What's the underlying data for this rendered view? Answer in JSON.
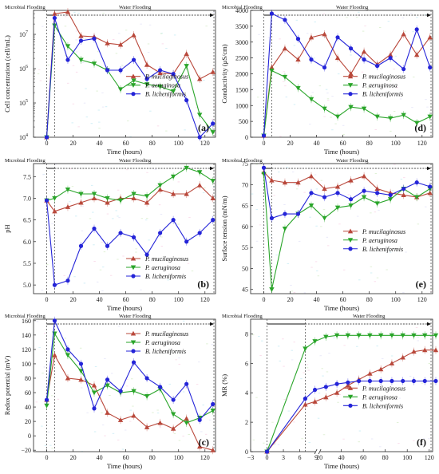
{
  "colors": {
    "pm": "#b9483b",
    "pa": "#2aa52a",
    "bl": "#2424d8"
  },
  "chart_data": [
    {
      "id": "a",
      "type": "line",
      "panel_label": "(a)",
      "ylabel": "Cell concentration (cell/mL)",
      "xlabel": "Time (hours)",
      "yscale": "log",
      "ylim": [
        10000,
        50000000
      ],
      "xlim": [
        -10,
        128
      ],
      "yticks": [
        10000,
        100000,
        1000000,
        10000000
      ],
      "ytick_labels": [
        "10",
        "10",
        "10",
        "10"
      ],
      "ytick_exponents": [
        "4",
        "5",
        "6",
        "7"
      ],
      "xticks": [
        0,
        20,
        40,
        60,
        80,
        100,
        120
      ],
      "phase_labels": [
        "Microbial Flooding",
        "Water Flooding"
      ],
      "legend_position": "center-right",
      "series": [
        {
          "name": "P. mucilaginosus",
          "color_key": "pm",
          "marker": "triangle",
          "x": [
            0,
            6,
            16,
            26,
            36,
            46,
            56,
            66,
            76,
            86,
            96,
            106,
            116,
            126
          ],
          "y": [
            10000,
            40000000,
            45000000,
            9000000,
            8500000,
            5500000,
            5000000,
            9500000,
            1300000,
            750000,
            700000,
            2700000,
            500000,
            800000
          ]
        },
        {
          "name": "P. aeruginosa",
          "color_key": "pa",
          "marker": "triangle-down",
          "x": [
            0,
            6,
            16,
            26,
            36,
            46,
            56,
            66,
            76,
            86,
            96,
            106,
            116,
            126
          ],
          "y": [
            10000,
            18000000,
            4500000,
            1800000,
            1400000,
            900000,
            250000,
            450000,
            350000,
            300000,
            220000,
            1200000,
            45000,
            14000
          ]
        },
        {
          "name": "B. licheniformis",
          "color_key": "bl",
          "marker": "circle",
          "x": [
            0,
            6,
            16,
            26,
            36,
            46,
            56,
            66,
            76,
            86,
            96,
            106,
            116,
            126
          ],
          "y": [
            10000,
            30000000,
            1800000,
            6500000,
            7500000,
            900000,
            900000,
            1800000,
            500000,
            900000,
            700000,
            120000,
            10000,
            25000
          ]
        }
      ]
    },
    {
      "id": "d",
      "type": "line",
      "panel_label": "(d)",
      "ylabel": "Conductivity (μS/cm)",
      "xlabel": "Time (hours)",
      "yscale": "linear",
      "ylim": [
        0,
        4000
      ],
      "xlim": [
        -10,
        128
      ],
      "yticks": [
        0,
        500,
        1000,
        1500,
        2000,
        2500,
        3000,
        3500,
        4000
      ],
      "ytick_labels": [
        "0",
        "500",
        "1000",
        "1500",
        "2000",
        "2500",
        "3000",
        "3500",
        "4000"
      ],
      "xticks": [
        0,
        20,
        40,
        60,
        80,
        100,
        120
      ],
      "phase_labels": [
        "Microbial Flooding",
        "Water Flooding"
      ],
      "legend_position": "center-right",
      "series": [
        {
          "name": "P. mucilaginosus",
          "color_key": "pm",
          "marker": "triangle",
          "x": [
            0,
            6,
            16,
            26,
            36,
            46,
            56,
            66,
            76,
            86,
            96,
            106,
            116,
            126
          ],
          "y": [
            50,
            2200,
            2800,
            2450,
            3150,
            3250,
            2500,
            2000,
            2700,
            2300,
            2600,
            3250,
            2600,
            3150
          ]
        },
        {
          "name": "P. aeruginosa",
          "color_key": "pa",
          "marker": "triangle-down",
          "x": [
            0,
            6,
            16,
            26,
            36,
            46,
            56,
            66,
            76,
            86,
            96,
            106,
            116,
            126
          ],
          "y": [
            50,
            2100,
            1900,
            1550,
            1200,
            900,
            650,
            950,
            900,
            650,
            600,
            700,
            450,
            650
          ]
        },
        {
          "name": "B. licheniformis",
          "color_key": "bl",
          "marker": "circle",
          "x": [
            0,
            6,
            16,
            26,
            36,
            46,
            56,
            66,
            76,
            86,
            96,
            106,
            116,
            126
          ],
          "y": [
            50,
            3900,
            3700,
            3100,
            2450,
            2200,
            3150,
            2800,
            2450,
            2250,
            2500,
            2150,
            3400,
            2200
          ]
        }
      ]
    },
    {
      "id": "b",
      "type": "line",
      "panel_label": "(b)",
      "ylabel": "pH",
      "xlabel": "Time (hours)",
      "yscale": "linear",
      "ylim": [
        4.8,
        7.8
      ],
      "xlim": [
        -10,
        128
      ],
      "yticks": [
        5.0,
        5.5,
        6.0,
        6.5,
        7.0,
        7.5
      ],
      "ytick_labels": [
        "5.0",
        "5.5",
        "6.0",
        "6.5",
        "7.0",
        "7.5"
      ],
      "xticks": [
        0,
        20,
        40,
        60,
        80,
        100,
        120
      ],
      "phase_labels": [
        "Microbial Flooding",
        "Water Flooding"
      ],
      "legend_position": "bottom-right",
      "series": [
        {
          "name": "P. mucilaginosus",
          "color_key": "pm",
          "marker": "triangle",
          "x": [
            0,
            6,
            16,
            26,
            36,
            46,
            56,
            66,
            76,
            86,
            96,
            106,
            116,
            126
          ],
          "y": [
            6.95,
            6.7,
            6.8,
            6.9,
            7.0,
            6.9,
            7.0,
            7.0,
            6.9,
            7.2,
            7.1,
            7.1,
            7.3,
            7.0
          ]
        },
        {
          "name": "P. aeruginosa",
          "color_key": "pa",
          "marker": "triangle-down",
          "x": [
            0,
            6,
            16,
            26,
            36,
            46,
            56,
            66,
            76,
            86,
            96,
            106,
            116,
            126
          ],
          "y": [
            6.95,
            7.0,
            7.2,
            7.1,
            7.1,
            7.0,
            6.95,
            7.1,
            7.05,
            7.3,
            7.5,
            7.7,
            7.6,
            7.4
          ]
        },
        {
          "name": "B. licheniformis",
          "color_key": "bl",
          "marker": "circle",
          "x": [
            0,
            6,
            16,
            26,
            36,
            46,
            56,
            66,
            76,
            86,
            96,
            106,
            116,
            126
          ],
          "y": [
            6.95,
            5.0,
            5.1,
            5.9,
            6.3,
            5.9,
            6.2,
            6.1,
            5.7,
            6.2,
            6.5,
            6.0,
            6.2,
            6.5
          ]
        }
      ]
    },
    {
      "id": "e",
      "type": "line",
      "panel_label": "(e)",
      "ylabel": "Surface tension (mN/m)",
      "xlabel": "Time (hours)",
      "yscale": "linear",
      "ylim": [
        44,
        75
      ],
      "xlim": [
        -10,
        128
      ],
      "yticks": [
        45,
        50,
        55,
        60,
        65,
        70,
        75
      ],
      "ytick_labels": [
        "45",
        "50",
        "55",
        "60",
        "65",
        "70",
        "75"
      ],
      "xticks": [
        0,
        20,
        40,
        60,
        80,
        100,
        120
      ],
      "phase_labels": [
        "Microbial Flooding",
        "Water Flooding"
      ],
      "legend_position": "center-right",
      "series": [
        {
          "name": "P. mucilaginosus",
          "color_key": "pm",
          "marker": "triangle",
          "x": [
            0,
            6,
            16,
            26,
            36,
            46,
            56,
            66,
            76,
            86,
            96,
            106,
            116,
            126
          ],
          "y": [
            73,
            71,
            70.5,
            70.5,
            72,
            69,
            69.5,
            71,
            72,
            69,
            68,
            67.5,
            67,
            68
          ]
        },
        {
          "name": "P. aeruginosa",
          "color_key": "pa",
          "marker": "triangle-down",
          "x": [
            0,
            6,
            16,
            26,
            36,
            46,
            56,
            66,
            76,
            86,
            96,
            106,
            116,
            126
          ],
          "y": [
            72.5,
            45,
            59.5,
            63,
            65,
            62,
            64.5,
            65,
            67,
            65.5,
            66.5,
            69,
            67,
            69
          ]
        },
        {
          "name": "B. licheniformis",
          "color_key": "bl",
          "marker": "circle",
          "x": [
            0,
            6,
            16,
            26,
            36,
            46,
            56,
            66,
            76,
            86,
            96,
            106,
            116,
            126
          ],
          "y": [
            74,
            62,
            63,
            63,
            68,
            67,
            68,
            66.5,
            68.5,
            68,
            67.5,
            69,
            70.5,
            69.5
          ]
        }
      ]
    },
    {
      "id": "c",
      "type": "line",
      "panel_label": "(c)",
      "ylabel": "Redox potential (mV)",
      "xlabel": "Time (hours)",
      "yscale": "linear",
      "ylim": [
        -22,
        162
      ],
      "xlim": [
        -10,
        128
      ],
      "yticks": [
        -20,
        0,
        20,
        40,
        60,
        80,
        100,
        120,
        140,
        160
      ],
      "ytick_labels": [
        "−20",
        "0",
        "20",
        "40",
        "60",
        "80",
        "100",
        "120",
        "140",
        "160"
      ],
      "xticks": [
        0,
        20,
        40,
        60,
        80,
        100,
        120
      ],
      "phase_labels": [
        "Microbial Flooding",
        "Water Flooding"
      ],
      "legend_position": "top-right",
      "series": [
        {
          "name": "P. mucilaginosus",
          "color_key": "pm",
          "marker": "triangle",
          "x": [
            0,
            6,
            16,
            26,
            36,
            46,
            56,
            66,
            76,
            86,
            96,
            106,
            116,
            126
          ],
          "y": [
            50,
            112,
            80,
            78,
            70,
            32,
            22,
            28,
            12,
            18,
            10,
            24,
            -15,
            -20
          ]
        },
        {
          "name": "P. aeruginosa",
          "color_key": "pa",
          "marker": "triangle-down",
          "x": [
            0,
            6,
            16,
            26,
            36,
            46,
            56,
            66,
            76,
            86,
            96,
            106,
            116,
            126
          ],
          "y": [
            42,
            142,
            112,
            90,
            60,
            70,
            60,
            62,
            55,
            65,
            30,
            18,
            25,
            35
          ]
        },
        {
          "name": "B. licheniformis",
          "color_key": "bl",
          "marker": "circle",
          "x": [
            0,
            6,
            16,
            26,
            36,
            46,
            56,
            66,
            76,
            86,
            96,
            106,
            116,
            126
          ],
          "y": [
            50,
            160,
            120,
            100,
            38,
            78,
            62,
            102,
            80,
            68,
            50,
            72,
            22,
            44
          ]
        }
      ]
    },
    {
      "id": "f",
      "type": "line",
      "panel_label": "(f)",
      "ylabel": "MR (%)",
      "xlabel": "Time (hours)",
      "yscale": "linear",
      "ylim": [
        0,
        9
      ],
      "xlim": [
        -3,
        126
      ],
      "x_break": [
        9,
        20
      ],
      "yticks": [
        0,
        2,
        4,
        6,
        8
      ],
      "ytick_labels": [
        "0",
        "2",
        "4",
        "6",
        "8"
      ],
      "xticks": [
        -3,
        0,
        3,
        6,
        9,
        20,
        40,
        60,
        80,
        100,
        120
      ],
      "phase_labels": [
        "Microbial Flooding",
        "Water Flooding"
      ],
      "legend_position": "center-right",
      "series": [
        {
          "name": "P. mucilaginosus",
          "color_key": "pm",
          "marker": "triangle",
          "x": [
            0,
            7,
            16,
            26,
            36,
            46,
            56,
            66,
            76,
            86,
            96,
            106,
            116,
            126
          ],
          "y": [
            0,
            3.2,
            3.4,
            3.7,
            4.0,
            4.5,
            4.9,
            5.3,
            5.6,
            6.0,
            6.4,
            6.8,
            6.9,
            6.9
          ]
        },
        {
          "name": "P. aeruginosa",
          "color_key": "pa",
          "marker": "triangle-down",
          "x": [
            0,
            7,
            16,
            26,
            36,
            46,
            56,
            66,
            76,
            86,
            96,
            106,
            116,
            126
          ],
          "y": [
            0,
            7.0,
            7.5,
            7.8,
            7.9,
            7.9,
            7.9,
            7.9,
            7.9,
            7.9,
            7.9,
            7.9,
            7.9,
            7.9
          ]
        },
        {
          "name": "B. licheniformis",
          "color_key": "bl",
          "marker": "circle",
          "x": [
            0,
            7,
            16,
            26,
            36,
            46,
            56,
            66,
            76,
            86,
            96,
            106,
            116,
            126
          ],
          "y": [
            0,
            3.6,
            4.2,
            4.4,
            4.6,
            4.7,
            4.8,
            4.8,
            4.8,
            4.8,
            4.8,
            4.8,
            4.8,
            4.8
          ]
        }
      ]
    }
  ]
}
